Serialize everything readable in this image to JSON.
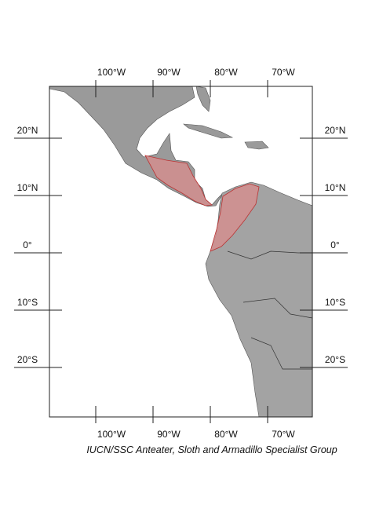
{
  "map": {
    "longitude_labels": [
      "100°W",
      "90°W",
      "80°W",
      "70°W"
    ],
    "latitude_labels": [
      "20°N",
      "10°N",
      "0°",
      "10°S",
      "20°S"
    ],
    "credit": "IUCN/SSC Anteater, Sloth and Armadillo Specialist Group"
  }
}
